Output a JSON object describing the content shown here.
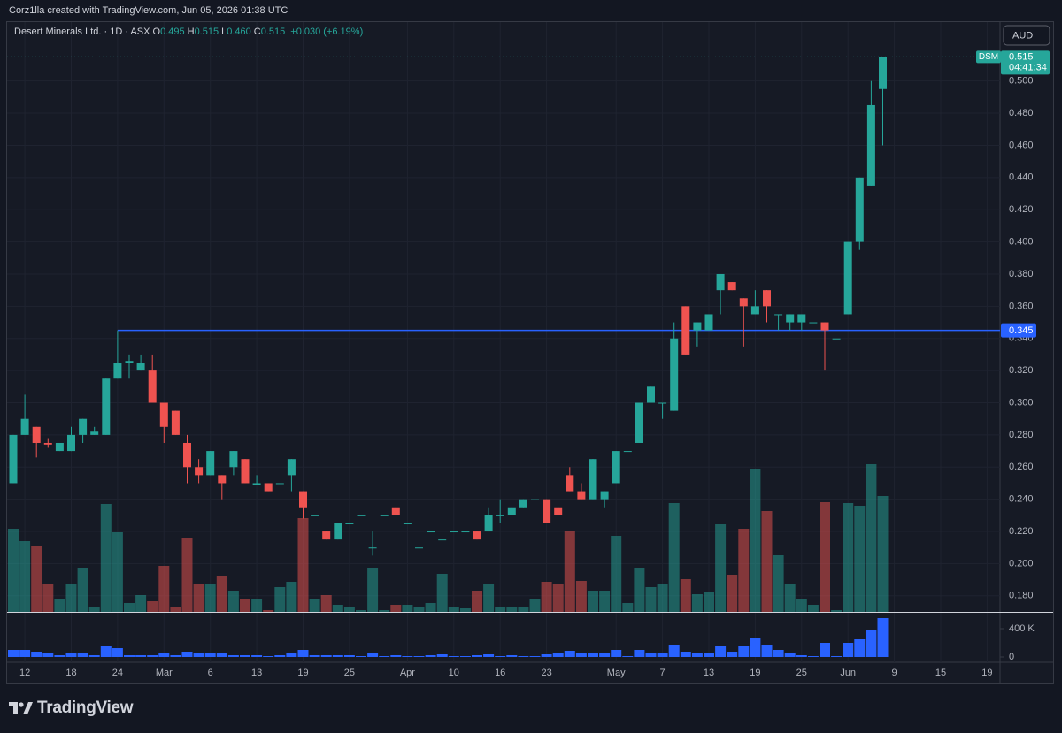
{
  "header": {
    "text": "Corz1lla created with TradingView.com, Jun 05, 2026 01:38 UTC"
  },
  "footer": {
    "logo": "TradingView"
  },
  "chart_data": {
    "type": "candlestick",
    "legend": {
      "title": "Desert Minerals Ltd. · 1D · ASX",
      "fields": [
        {
          "key": "O",
          "label": "0.495"
        },
        {
          "key": "H",
          "label": "0.515"
        },
        {
          "key": "L",
          "label": "0.460"
        },
        {
          "key": "C",
          "label": "0.515"
        }
      ],
      "change": "+0.030 (+6.19%)"
    },
    "currency": "AUD",
    "up_color": "#26a69a",
    "down_color": "#ef5350",
    "open": [
      0.25,
      0.28,
      0.285,
      0.275,
      0.27,
      0.27,
      0.28,
      0.28,
      0.28,
      0.315,
      0.325,
      0.32,
      0.32,
      0.3,
      0.295,
      0.275,
      0.26,
      0.255,
      0.255,
      0.26,
      0.265,
      0.249,
      0.25,
      0.25,
      0.255,
      0.245,
      0.23,
      0.22,
      0.215,
      0.225,
      0.23,
      0.21,
      0.23,
      0.235,
      0.225,
      0.21,
      0.22,
      0.215,
      0.22,
      0.22,
      0.22,
      0.22,
      0.23,
      0.23,
      0.235,
      0.24,
      0.24,
      0.235,
      0.255,
      0.245,
      0.24,
      0.24,
      0.25,
      0.27,
      0.275,
      0.3,
      0.3,
      0.295,
      0.36,
      0.345,
      0.345,
      0.37,
      0.375,
      0.365,
      0.355,
      0.37,
      0.355,
      0.35,
      0.35,
      0.35,
      0.35,
      0.34,
      0.355,
      0.4,
      0.435,
      0.495
    ],
    "high": [
      0.28,
      0.305,
      0.285,
      0.278,
      0.275,
      0.285,
      0.29,
      0.285,
      0.315,
      0.345,
      0.33,
      0.33,
      0.33,
      0.3,
      0.295,
      0.28,
      0.265,
      0.27,
      0.255,
      0.27,
      0.265,
      0.255,
      0.25,
      0.25,
      0.265,
      0.245,
      0.23,
      0.22,
      0.225,
      0.225,
      0.23,
      0.22,
      0.23,
      0.235,
      0.225,
      0.21,
      0.22,
      0.215,
      0.22,
      0.22,
      0.22,
      0.235,
      0.24,
      0.235,
      0.24,
      0.24,
      0.24,
      0.235,
      0.26,
      0.25,
      0.265,
      0.245,
      0.27,
      0.27,
      0.3,
      0.31,
      0.3,
      0.35,
      0.36,
      0.35,
      0.355,
      0.38,
      0.375,
      0.365,
      0.37,
      0.37,
      0.355,
      0.355,
      0.355,
      0.35,
      0.35,
      0.34,
      0.4,
      0.44,
      0.5,
      0.515
    ],
    "low": [
      0.25,
      0.28,
      0.266,
      0.272,
      0.27,
      0.27,
      0.275,
      0.28,
      0.28,
      0.315,
      0.315,
      0.32,
      0.3,
      0.275,
      0.28,
      0.25,
      0.25,
      0.255,
      0.24,
      0.255,
      0.25,
      0.249,
      0.245,
      0.25,
      0.245,
      0.228,
      0.23,
      0.215,
      0.215,
      0.225,
      0.23,
      0.205,
      0.23,
      0.23,
      0.225,
      0.21,
      0.22,
      0.215,
      0.22,
      0.22,
      0.215,
      0.22,
      0.225,
      0.23,
      0.235,
      0.24,
      0.225,
      0.23,
      0.245,
      0.24,
      0.24,
      0.235,
      0.25,
      0.27,
      0.275,
      0.3,
      0.29,
      0.295,
      0.33,
      0.335,
      0.345,
      0.355,
      0.37,
      0.335,
      0.355,
      0.35,
      0.345,
      0.345,
      0.345,
      0.35,
      0.32,
      0.34,
      0.355,
      0.395,
      0.435,
      0.46
    ],
    "close": [
      0.28,
      0.29,
      0.275,
      0.274,
      0.275,
      0.28,
      0.29,
      0.282,
      0.315,
      0.325,
      0.326,
      0.325,
      0.3,
      0.285,
      0.28,
      0.26,
      0.255,
      0.27,
      0.25,
      0.27,
      0.25,
      0.25,
      0.245,
      0.25,
      0.265,
      0.235,
      0.23,
      0.215,
      0.225,
      0.225,
      0.23,
      0.21,
      0.23,
      0.23,
      0.225,
      0.21,
      0.22,
      0.215,
      0.22,
      0.22,
      0.215,
      0.23,
      0.23,
      0.235,
      0.24,
      0.24,
      0.225,
      0.23,
      0.245,
      0.24,
      0.265,
      0.245,
      0.27,
      0.27,
      0.3,
      0.31,
      0.3,
      0.34,
      0.33,
      0.35,
      0.355,
      0.38,
      0.37,
      0.36,
      0.36,
      0.36,
      0.355,
      0.355,
      0.355,
      0.35,
      0.345,
      0.34,
      0.4,
      0.44,
      0.485,
      0.515
    ],
    "volume": [
      282000,
      240000,
      222000,
      96000,
      42000,
      96000,
      150000,
      18000,
      366000,
      270000,
      30000,
      57000,
      36000,
      156000,
      18000,
      249000,
      96000,
      96000,
      123000,
      72000,
      42000,
      42000,
      6000,
      84000,
      102000,
      318000,
      42000,
      57000,
      24000,
      18000,
      6000,
      150000,
      6000,
      24000,
      24000,
      18000,
      30000,
      129000,
      18000,
      12000,
      72000,
      96000,
      18000,
      18000,
      18000,
      42000,
      102000,
      96000,
      276000,
      105000,
      72000,
      72000,
      258000,
      30000,
      150000,
      84000,
      96000,
      369000,
      111000,
      60000,
      66000,
      297000,
      126000,
      282000,
      486000,
      342000,
      192000,
      96000,
      42000,
      24000,
      372000,
      6000,
      369000,
      360000,
      501000,
      393000
    ],
    "ylim": [
      0.17,
      0.535
    ],
    "yticks": [
      {
        "value": 0.18,
        "label": "0.180"
      },
      {
        "value": 0.2,
        "label": "0.200"
      },
      {
        "value": 0.22,
        "label": "0.220"
      },
      {
        "value": 0.24,
        "label": "0.240"
      },
      {
        "value": 0.26,
        "label": "0.260"
      },
      {
        "value": 0.28,
        "label": "0.280"
      },
      {
        "value": 0.3,
        "label": "0.300"
      },
      {
        "value": 0.32,
        "label": "0.320"
      },
      {
        "value": 0.34,
        "label": "0.340"
      },
      {
        "value": 0.36,
        "label": "0.360"
      },
      {
        "value": 0.38,
        "label": "0.380"
      },
      {
        "value": 0.4,
        "label": "0.400"
      },
      {
        "value": 0.42,
        "label": "0.420"
      },
      {
        "value": 0.44,
        "label": "0.440"
      },
      {
        "value": 0.46,
        "label": "0.460"
      },
      {
        "value": 0.48,
        "label": "0.480"
      },
      {
        "value": 0.5,
        "label": "0.500"
      }
    ],
    "xticks": [
      {
        "value": 1,
        "label": "12"
      },
      {
        "value": 5,
        "label": "18"
      },
      {
        "value": 9,
        "label": "24"
      },
      {
        "value": 13,
        "label": "Mar"
      },
      {
        "value": 17,
        "label": "6"
      },
      {
        "value": 21,
        "label": "13"
      },
      {
        "value": 25,
        "label": "19"
      },
      {
        "value": 29,
        "label": "25"
      },
      {
        "value": 34,
        "label": "Apr"
      },
      {
        "value": 38,
        "label": "10"
      },
      {
        "value": 42,
        "label": "16"
      },
      {
        "value": 46,
        "label": "23"
      },
      {
        "value": 52,
        "label": "May"
      },
      {
        "value": 56,
        "label": "7"
      },
      {
        "value": 60,
        "label": "13"
      },
      {
        "value": 64,
        "label": "19"
      },
      {
        "value": 68,
        "label": "25"
      },
      {
        "value": 72,
        "label": "Jun"
      },
      {
        "value": 76,
        "label": "9"
      },
      {
        "value": 80,
        "label": "15"
      },
      {
        "value": 84,
        "label": "19"
      }
    ],
    "grid": true,
    "price_line": {
      "value": 0.345,
      "label": "0.345",
      "color": "#2962ff"
    },
    "last_price": {
      "symbol": "DSM",
      "value": 0.515,
      "label": "0.515",
      "countdown": "04:41:34"
    },
    "volume_pane": {
      "color": "#2962ff",
      "values": [
        100000,
        100000,
        75000,
        50000,
        25000,
        50000,
        50000,
        25000,
        150000,
        125000,
        25000,
        25000,
        25000,
        50000,
        25000,
        75000,
        50000,
        50000,
        50000,
        25000,
        25000,
        25000,
        12500,
        25000,
        50000,
        100000,
        25000,
        25000,
        25000,
        25000,
        12500,
        50000,
        12500,
        25000,
        12500,
        12500,
        25000,
        37500,
        12500,
        12500,
        25000,
        37500,
        12500,
        25000,
        12500,
        12500,
        37500,
        50000,
        87500,
        50000,
        50000,
        50000,
        100000,
        12500,
        100000,
        50000,
        62500,
        175000,
        75000,
        50000,
        50000,
        150000,
        75000,
        150000,
        275000,
        175000,
        100000,
        50000,
        25000,
        12500,
        200000,
        12500,
        200000,
        250000,
        387500,
        550000
      ],
      "ylim": [
        0,
        600000
      ],
      "yticks": [
        {
          "value": 400000,
          "label": "400 K"
        },
        0
      ]
    }
  }
}
